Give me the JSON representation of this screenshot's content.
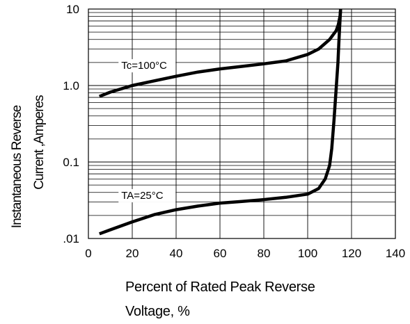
{
  "chart_data": {
    "type": "line",
    "xlabel_lines": [
      "Percent of Rated Peak Reverse",
      "Voltage, %"
    ],
    "ylabel_lines": [
      "Instantaneous Reverse",
      "Current ,Amperes"
    ],
    "xlim": [
      0,
      140
    ],
    "ylim": [
      0.01,
      10
    ],
    "y_scale": "log",
    "grid": true,
    "x_ticks": [
      "0",
      "20",
      "40",
      "60",
      "80",
      "100",
      "120",
      "140"
    ],
    "y_ticks": [
      {
        "value": 10,
        "label": "10"
      },
      {
        "value": 1,
        "label": "1.0"
      },
      {
        "value": 0.1,
        "label": "0.1"
      },
      {
        "value": 0.01,
        "label": ".01"
      }
    ],
    "series": [
      {
        "name": "Tc=100°C",
        "x": [
          5,
          10,
          20,
          30,
          40,
          50,
          60,
          70,
          80,
          90,
          100,
          105,
          110,
          113,
          114,
          114.8,
          115
        ],
        "y": [
          0.72,
          0.82,
          1.0,
          1.15,
          1.32,
          1.5,
          1.65,
          1.78,
          1.92,
          2.1,
          2.55,
          3.0,
          4.0,
          5.2,
          6.3,
          8.2,
          10
        ]
      },
      {
        "name": "TA=25°C",
        "x": [
          5,
          10,
          20,
          30,
          40,
          50,
          60,
          70,
          80,
          90,
          100,
          105,
          108,
          110,
          111,
          112,
          113,
          113.8,
          114.2,
          114.6,
          115
        ],
        "y": [
          0.0115,
          0.013,
          0.0165,
          0.0205,
          0.0238,
          0.0265,
          0.029,
          0.0305,
          0.0322,
          0.0345,
          0.038,
          0.045,
          0.06,
          0.09,
          0.15,
          0.35,
          0.9,
          2.0,
          3.5,
          6.0,
          10
        ]
      }
    ]
  }
}
